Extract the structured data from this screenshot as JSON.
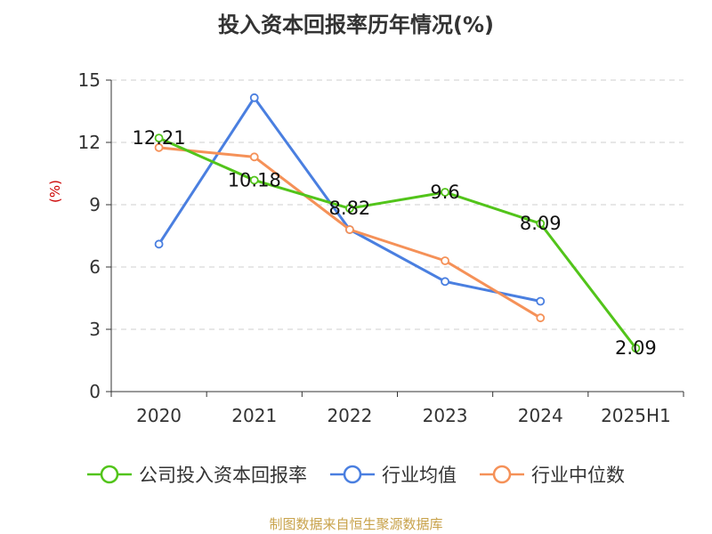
{
  "chart_data": {
    "type": "line",
    "title": "投入资本回报率历年情况(%)",
    "ylabel": "(%)",
    "xlabel": "",
    "categories": [
      "2020",
      "2021",
      "2022",
      "2023",
      "2024",
      "2025H1"
    ],
    "ylim": [
      0,
      15
    ],
    "yticks": [
      0,
      3,
      6,
      9,
      12,
      15
    ],
    "grid": true,
    "legend_position": "bottom",
    "series": [
      {
        "name": "公司投入资本回报率",
        "color": "#52c41a",
        "values": [
          12.21,
          10.18,
          8.82,
          9.6,
          8.09,
          2.09
        ],
        "labels": [
          "12.21",
          "10.18",
          "8.82",
          "9.6",
          "8.09",
          "2.09"
        ]
      },
      {
        "name": "行业均值",
        "color": "#4a7fe0",
        "values": [
          7.1,
          14.15,
          7.8,
          5.3,
          4.35,
          null
        ]
      },
      {
        "name": "行业中位数",
        "color": "#f59158",
        "values": [
          11.75,
          11.3,
          7.8,
          6.3,
          3.55,
          null
        ]
      }
    ]
  },
  "source": "制图数据来自恒生聚源数据库"
}
